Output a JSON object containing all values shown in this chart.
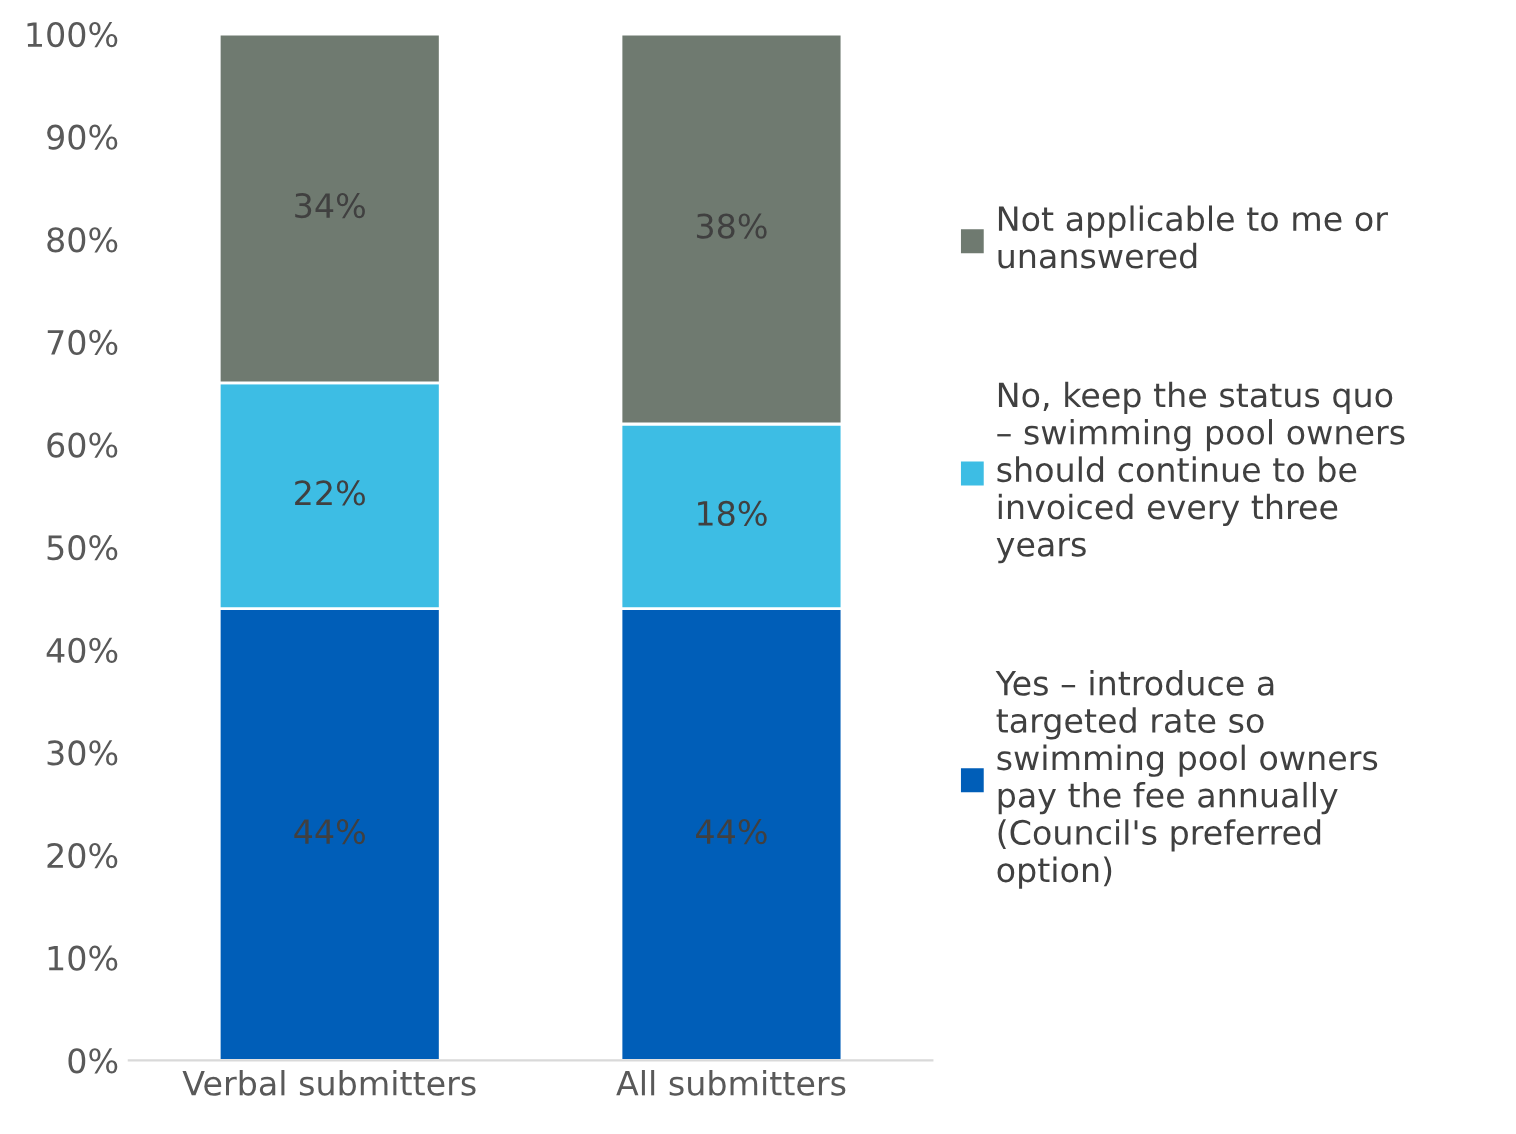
{
  "chart_data": {
    "type": "bar",
    "stacked": true,
    "categories": [
      "Verbal submitters",
      "All submitters"
    ],
    "series": [
      {
        "name": "Yes – introduce a\ntargeted rate so\nswimming pool owners\npay the fee annually\n(Council's preferred\noption)",
        "color": "#005eb8",
        "values": [
          44,
          44
        ],
        "value_labels": [
          "44%",
          "44%"
        ]
      },
      {
        "name": "No, keep the status quo\n– swimming pool owners\nshould continue to be\ninvoiced every three\nyears",
        "color": "#3dbde4",
        "values": [
          22,
          18
        ],
        "value_labels": [
          "22%",
          "18%"
        ]
      },
      {
        "name": "Not applicable to me or\nunanswered",
        "color": "#6f7a70",
        "values": [
          34,
          38
        ],
        "value_labels": [
          "34%",
          "38%"
        ]
      }
    ],
    "ylim": [
      0,
      100
    ],
    "yticks": [
      {
        "value": 0,
        "label": "0%"
      },
      {
        "value": 10,
        "label": "10%"
      },
      {
        "value": 20,
        "label": "20%"
      },
      {
        "value": 30,
        "label": "30%"
      },
      {
        "value": 40,
        "label": "40%"
      },
      {
        "value": 50,
        "label": "50%"
      },
      {
        "value": 60,
        "label": "60%"
      },
      {
        "value": 70,
        "label": "70%"
      },
      {
        "value": 80,
        "label": "80%"
      },
      {
        "value": 90,
        "label": "90%"
      },
      {
        "value": 100,
        "label": "100%"
      }
    ],
    "grid": false,
    "legend": "right"
  }
}
